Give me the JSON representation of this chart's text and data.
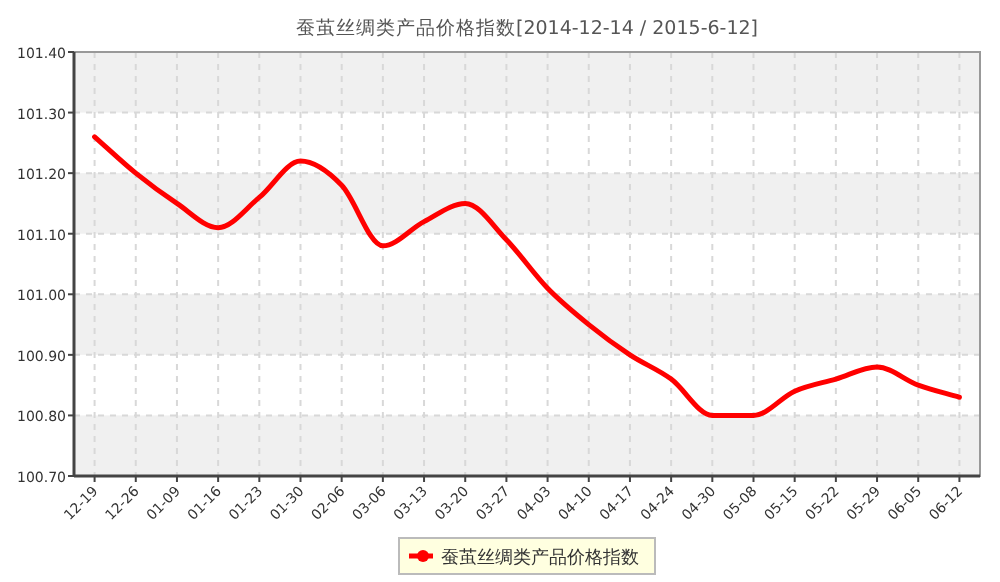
{
  "chart_data": {
    "type": "line",
    "title": "蚕茧丝绸类产品价格指数[2014-12-14 / 2015-6-12]",
    "categories": [
      "12-19",
      "12-26",
      "01-09",
      "01-16",
      "01-23",
      "01-30",
      "02-06",
      "03-06",
      "03-13",
      "03-20",
      "03-27",
      "04-03",
      "04-10",
      "04-17",
      "04-24",
      "04-30",
      "05-08",
      "05-15",
      "05-22",
      "05-29",
      "06-05",
      "06-12"
    ],
    "series": [
      {
        "name": "蚕茧丝绸类产品价格指数",
        "color": "#ff0000",
        "values": [
          101.26,
          101.2,
          101.15,
          101.11,
          101.16,
          101.22,
          101.18,
          101.08,
          101.12,
          101.15,
          101.09,
          101.01,
          100.95,
          100.9,
          100.86,
          100.8,
          100.8,
          100.84,
          100.86,
          100.88,
          100.85,
          100.83
        ]
      }
    ],
    "ylim": [
      100.7,
      101.4
    ],
    "yticks": [
      {
        "value": 100.7,
        "label": "100.70"
      },
      {
        "value": 100.8,
        "label": "100.80"
      },
      {
        "value": 100.9,
        "label": "100.90"
      },
      {
        "value": 101.0,
        "label": "101.00"
      },
      {
        "value": 101.1,
        "label": "101.10"
      },
      {
        "value": 101.2,
        "label": "101.20"
      },
      {
        "value": 101.3,
        "label": "101.30"
      },
      {
        "value": 101.4,
        "label": "101.40"
      }
    ],
    "grid": true,
    "legend": "bottom",
    "marker": "none",
    "line_style": "solid"
  }
}
